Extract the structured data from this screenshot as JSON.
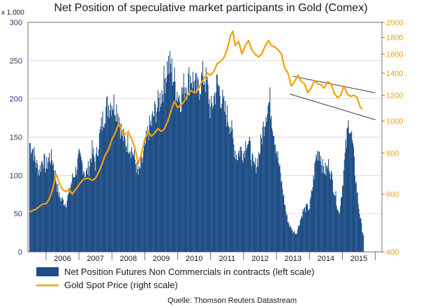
{
  "chart_data": {
    "type": "bar+line",
    "title": "Net Position of speculative market participants in Gold (Comex)",
    "left_axis": {
      "unit_label": "x 1.000",
      "ticks": [
        0,
        50,
        100,
        150,
        200,
        250,
        300
      ],
      "tick_labels": [
        "0",
        "50",
        "100",
        "150",
        "200",
        "250",
        "300"
      ],
      "ylim": [
        0,
        300
      ],
      "color": "#1f3f6e"
    },
    "right_axis": {
      "scale": "log",
      "ticks": [
        400,
        600,
        800,
        1000,
        1200,
        1400,
        1600,
        1800,
        2000
      ],
      "tick_labels": [
        "400",
        "600",
        "800",
        "1000",
        "1200",
        "1400",
        "1600",
        "1800",
        "2000"
      ],
      "ylim": [
        400,
        2000
      ],
      "color": "#f5a000"
    },
    "x_axis": {
      "categories": [
        "2006",
        "2007",
        "2008",
        "2009",
        "2010",
        "2011",
        "2012",
        "2013",
        "2014",
        "2015"
      ],
      "xlim": [
        2005.45,
        2016.2
      ]
    },
    "series": [
      {
        "name": "Net Position Futures Non Commercials in contracts (left scale)",
        "type": "bar",
        "axis": "left",
        "color": "#1f4e86",
        "points": [
          [
            2005.5,
            148
          ],
          [
            2005.6,
            140
          ],
          [
            2005.7,
            120
          ],
          [
            2005.8,
            110
          ],
          [
            2005.9,
            128
          ],
          [
            2006.0,
            115
          ],
          [
            2006.1,
            130
          ],
          [
            2006.2,
            125
          ],
          [
            2006.3,
            100
          ],
          [
            2006.4,
            75
          ],
          [
            2006.5,
            70
          ],
          [
            2006.6,
            65
          ],
          [
            2006.7,
            80
          ],
          [
            2006.8,
            100
          ],
          [
            2006.9,
            110
          ],
          [
            2007.0,
            128
          ],
          [
            2007.1,
            120
          ],
          [
            2007.2,
            105
          ],
          [
            2007.3,
            115
          ],
          [
            2007.4,
            138
          ],
          [
            2007.5,
            120
          ],
          [
            2007.6,
            150
          ],
          [
            2007.7,
            175
          ],
          [
            2007.8,
            195
          ],
          [
            2007.9,
            200
          ],
          [
            2008.0,
            205
          ],
          [
            2008.1,
            200
          ],
          [
            2008.2,
            190
          ],
          [
            2008.3,
            160
          ],
          [
            2008.4,
            150
          ],
          [
            2008.5,
            148
          ],
          [
            2008.6,
            140
          ],
          [
            2008.7,
            125
          ],
          [
            2008.8,
            105
          ],
          [
            2008.9,
            120
          ],
          [
            2009.0,
            140
          ],
          [
            2009.1,
            165
          ],
          [
            2009.2,
            175
          ],
          [
            2009.3,
            190
          ],
          [
            2009.4,
            200
          ],
          [
            2009.5,
            215
          ],
          [
            2009.6,
            235
          ],
          [
            2009.7,
            255
          ],
          [
            2009.8,
            250
          ],
          [
            2009.9,
            232
          ],
          [
            2010.0,
            215
          ],
          [
            2010.1,
            210
          ],
          [
            2010.2,
            228
          ],
          [
            2010.3,
            230
          ],
          [
            2010.4,
            240
          ],
          [
            2010.5,
            230
          ],
          [
            2010.6,
            218
          ],
          [
            2010.7,
            232
          ],
          [
            2010.8,
            240
          ],
          [
            2010.9,
            225
          ],
          [
            2011.0,
            190
          ],
          [
            2011.1,
            210
          ],
          [
            2011.2,
            230
          ],
          [
            2011.3,
            215
          ],
          [
            2011.4,
            195
          ],
          [
            2011.5,
            185
          ],
          [
            2011.6,
            175
          ],
          [
            2011.7,
            145
          ],
          [
            2011.8,
            130
          ],
          [
            2011.9,
            140
          ],
          [
            2012.0,
            135
          ],
          [
            2012.1,
            155
          ],
          [
            2012.2,
            140
          ],
          [
            2012.3,
            115
          ],
          [
            2012.4,
            120
          ],
          [
            2012.5,
            140
          ],
          [
            2012.6,
            170
          ],
          [
            2012.7,
            195
          ],
          [
            2012.8,
            205
          ],
          [
            2012.9,
            170
          ],
          [
            2013.0,
            140
          ],
          [
            2013.1,
            110
          ],
          [
            2013.2,
            80
          ],
          [
            2013.3,
            50
          ],
          [
            2013.4,
            35
          ],
          [
            2013.5,
            28
          ],
          [
            2013.6,
            25
          ],
          [
            2013.7,
            40
          ],
          [
            2013.8,
            55
          ],
          [
            2013.9,
            60
          ],
          [
            2014.0,
            60
          ],
          [
            2014.1,
            90
          ],
          [
            2014.2,
            130
          ],
          [
            2014.3,
            140
          ],
          [
            2014.4,
            115
          ],
          [
            2014.5,
            110
          ],
          [
            2014.6,
            120
          ],
          [
            2014.7,
            95
          ],
          [
            2014.8,
            75
          ],
          [
            2014.9,
            50
          ],
          [
            2015.0,
            90
          ],
          [
            2015.1,
            140
          ],
          [
            2015.2,
            180
          ],
          [
            2015.3,
            150
          ],
          [
            2015.4,
            100
          ],
          [
            2015.5,
            60
          ],
          [
            2015.6,
            30
          ],
          [
            2015.65,
            22
          ]
        ]
      },
      {
        "name": "Gold Spot Price (right  scale)",
        "type": "line",
        "axis": "right",
        "color": "#f5a000",
        "points": [
          [
            2005.5,
            530
          ],
          [
            2005.7,
            540
          ],
          [
            2005.9,
            560
          ],
          [
            2006.0,
            560
          ],
          [
            2006.1,
            580
          ],
          [
            2006.2,
            620
          ],
          [
            2006.3,
            690
          ],
          [
            2006.4,
            650
          ],
          [
            2006.5,
            620
          ],
          [
            2006.6,
            610
          ],
          [
            2006.7,
            620
          ],
          [
            2006.8,
            600
          ],
          [
            2006.9,
            620
          ],
          [
            2007.0,
            640
          ],
          [
            2007.1,
            660
          ],
          [
            2007.2,
            670
          ],
          [
            2007.3,
            670
          ],
          [
            2007.4,
            660
          ],
          [
            2007.5,
            670
          ],
          [
            2007.6,
            700
          ],
          [
            2007.7,
            740
          ],
          [
            2007.8,
            790
          ],
          [
            2007.9,
            820
          ],
          [
            2008.0,
            880
          ],
          [
            2008.1,
            920
          ],
          [
            2008.2,
            980
          ],
          [
            2008.25,
            960
          ],
          [
            2008.35,
            900
          ],
          [
            2008.5,
            930
          ],
          [
            2008.6,
            880
          ],
          [
            2008.7,
            830
          ],
          [
            2008.8,
            740
          ],
          [
            2008.9,
            800
          ],
          [
            2009.0,
            880
          ],
          [
            2009.1,
            930
          ],
          [
            2009.2,
            900
          ],
          [
            2009.3,
            920
          ],
          [
            2009.4,
            950
          ],
          [
            2009.5,
            930
          ],
          [
            2009.6,
            950
          ],
          [
            2009.7,
            1000
          ],
          [
            2009.8,
            1080
          ],
          [
            2009.9,
            1150
          ],
          [
            2010.0,
            1100
          ],
          [
            2010.1,
            1120
          ],
          [
            2010.2,
            1150
          ],
          [
            2010.3,
            1200
          ],
          [
            2010.4,
            1240
          ],
          [
            2010.5,
            1220
          ],
          [
            2010.6,
            1240
          ],
          [
            2010.7,
            1300
          ],
          [
            2010.8,
            1350
          ],
          [
            2010.9,
            1400
          ],
          [
            2011.0,
            1380
          ],
          [
            2011.1,
            1420
          ],
          [
            2011.2,
            1500
          ],
          [
            2011.3,
            1520
          ],
          [
            2011.4,
            1560
          ],
          [
            2011.5,
            1650
          ],
          [
            2011.6,
            1820
          ],
          [
            2011.67,
            1880
          ],
          [
            2011.75,
            1700
          ],
          [
            2011.85,
            1750
          ],
          [
            2011.95,
            1600
          ],
          [
            2012.05,
            1700
          ],
          [
            2012.15,
            1760
          ],
          [
            2012.25,
            1650
          ],
          [
            2012.35,
            1600
          ],
          [
            2012.45,
            1570
          ],
          [
            2012.55,
            1600
          ],
          [
            2012.65,
            1690
          ],
          [
            2012.75,
            1760
          ],
          [
            2012.85,
            1700
          ],
          [
            2012.95,
            1680
          ],
          [
            2013.05,
            1650
          ],
          [
            2013.15,
            1600
          ],
          [
            2013.25,
            1450
          ],
          [
            2013.35,
            1400
          ],
          [
            2013.45,
            1280
          ],
          [
            2013.55,
            1320
          ],
          [
            2013.65,
            1380
          ],
          [
            2013.75,
            1320
          ],
          [
            2013.85,
            1300
          ],
          [
            2013.95,
            1220
          ],
          [
            2014.05,
            1260
          ],
          [
            2014.15,
            1330
          ],
          [
            2014.25,
            1300
          ],
          [
            2014.35,
            1290
          ],
          [
            2014.45,
            1260
          ],
          [
            2014.55,
            1320
          ],
          [
            2014.65,
            1300
          ],
          [
            2014.75,
            1220
          ],
          [
            2014.85,
            1180
          ],
          [
            2014.95,
            1200
          ],
          [
            2015.05,
            1280
          ],
          [
            2015.15,
            1210
          ],
          [
            2015.25,
            1190
          ],
          [
            2015.35,
            1200
          ],
          [
            2015.45,
            1180
          ],
          [
            2015.55,
            1100
          ],
          [
            2015.6,
            1090
          ]
        ]
      }
    ],
    "annotations": [
      {
        "type": "trendline",
        "axis": "right",
        "color": "#222222",
        "from": [
          2013.5,
          1370
        ],
        "to": [
          2016.0,
          1220
        ]
      },
      {
        "type": "trendline",
        "axis": "right",
        "color": "#222222",
        "from": [
          2013.4,
          1210
        ],
        "to": [
          2016.0,
          1010
        ]
      }
    ],
    "legend": {
      "position": "bottom-left",
      "entries": [
        "Net Position Futures Non Commercials in contracts (left scale)",
        "Gold Spot Price (right  scale)"
      ]
    },
    "source": "Quelle: Thomson Reuters Datastream"
  }
}
